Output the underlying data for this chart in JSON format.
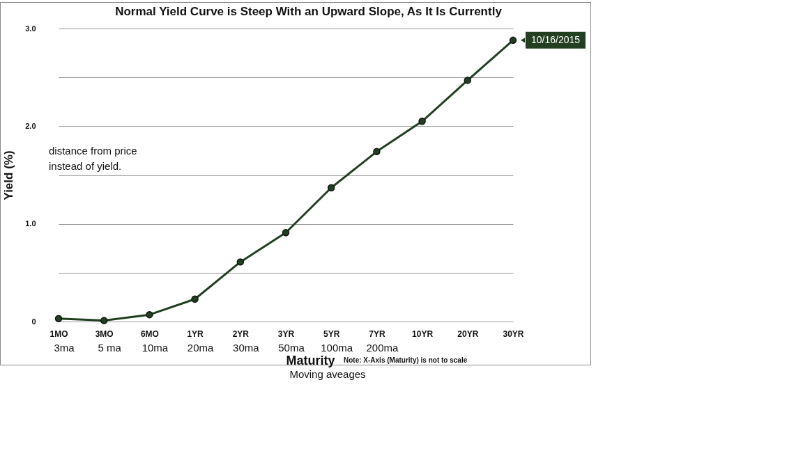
{
  "chart_data": {
    "type": "line",
    "title": "Normal Yield Curve is Steep With an Upward Slope, As It Is Currently",
    "xlabel": "Maturity",
    "ylabel": "Yield (%)",
    "categories": [
      "1MO",
      "3MO",
      "6MO",
      "1YR",
      "2YR",
      "3YR",
      "5YR",
      "7YR",
      "10YR",
      "20YR",
      "30YR"
    ],
    "series": [
      {
        "name": "10/16/2015",
        "color": "#223f22",
        "values": [
          0.03,
          0.01,
          0.07,
          0.23,
          0.61,
          0.91,
          1.37,
          1.74,
          2.05,
          2.47,
          2.88
        ]
      }
    ],
    "ylim": [
      0,
      3
    ],
    "yticks": [
      0,
      {
        "value": 0.5,
        "label": null
      },
      {
        "value": 1,
        "label": "1.0"
      },
      {
        "value": 1.5,
        "label": null
      },
      {
        "value": 2,
        "label": "2.0"
      },
      {
        "value": 2.5,
        "label": null
      },
      {
        "value": 3,
        "label": "3.0"
      }
    ],
    "grid": "y",
    "legend": "top right",
    "marker": "circle",
    "line_style": "solid",
    "annotations": [
      "3ma",
      "5 ma",
      "10ma",
      "20ma",
      "30ma",
      "50ma",
      "100ma",
      "200ma",
      "distance from price\ninstead of yield.",
      "Note: X-Axis (Maturity) is not to scale",
      "Moving aveages"
    ]
  }
}
